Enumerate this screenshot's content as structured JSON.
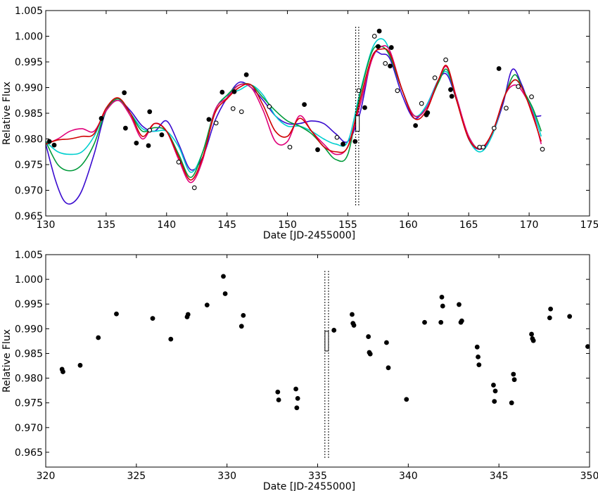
{
  "chart_data": [
    {
      "type": "line",
      "xlabel": "Date [JD-2455000]",
      "ylabel": "Relative Flux",
      "xlim": [
        130,
        175
      ],
      "ylim": [
        0.965,
        1.005
      ],
      "xticks": [
        130,
        135,
        140,
        145,
        150,
        155,
        160,
        165,
        170,
        175
      ],
      "xtick_labels": [
        "130",
        "135",
        "140",
        "145",
        "150",
        "155",
        "160",
        "165",
        "170",
        "175"
      ],
      "yticks": [
        0.965,
        0.97,
        0.975,
        0.98,
        0.985,
        0.99,
        0.995,
        1.0,
        1.005
      ],
      "ytick_labels": [
        "0.965",
        "0.970",
        "0.975",
        "0.980",
        "0.985",
        "0.990",
        "0.995",
        "1.000",
        "1.005"
      ],
      "grid": false,
      "vlines": [
        155.65,
        155.9
      ],
      "errorbar_box": {
        "x": 155.8,
        "y_low": 0.9815,
        "y_high": 0.9845
      },
      "filled_points": [
        {
          "x": 130.3,
          "y": 0.9795
        },
        {
          "x": 130.7,
          "y": 0.9788
        },
        {
          "x": 134.6,
          "y": 0.984
        },
        {
          "x": 136.5,
          "y": 0.989
        },
        {
          "x": 136.6,
          "y": 0.9821
        },
        {
          "x": 137.5,
          "y": 0.9792
        },
        {
          "x": 138.5,
          "y": 0.9787
        },
        {
          "x": 138.6,
          "y": 0.9853
        },
        {
          "x": 139.6,
          "y": 0.9808
        },
        {
          "x": 143.5,
          "y": 0.9838
        },
        {
          "x": 144.6,
          "y": 0.9891
        },
        {
          "x": 145.6,
          "y": 0.9892
        },
        {
          "x": 146.6,
          "y": 0.9925
        },
        {
          "x": 151.4,
          "y": 0.9867
        },
        {
          "x": 152.5,
          "y": 0.9779
        },
        {
          "x": 154.6,
          "y": 0.979
        },
        {
          "x": 155.6,
          "y": 0.9795
        },
        {
          "x": 156.4,
          "y": 0.9861
        },
        {
          "x": 157.5,
          "y": 0.998
        },
        {
          "x": 157.6,
          "y": 1.001
        },
        {
          "x": 158.6,
          "y": 0.9978
        },
        {
          "x": 158.5,
          "y": 0.9942
        },
        {
          "x": 160.6,
          "y": 0.9826
        },
        {
          "x": 161.5,
          "y": 0.9847
        },
        {
          "x": 161.6,
          "y": 0.9851
        },
        {
          "x": 163.5,
          "y": 0.9896
        },
        {
          "x": 163.6,
          "y": 0.9883
        },
        {
          "x": 167.5,
          "y": 0.9937
        }
      ],
      "open_points": [
        {
          "x": 138.6,
          "y": 0.9817
        },
        {
          "x": 141.0,
          "y": 0.9755
        },
        {
          "x": 142.3,
          "y": 0.9705
        },
        {
          "x": 144.1,
          "y": 0.9831
        },
        {
          "x": 145.5,
          "y": 0.9859
        },
        {
          "x": 146.2,
          "y": 0.9853
        },
        {
          "x": 148.5,
          "y": 0.9863
        },
        {
          "x": 150.2,
          "y": 0.9784
        },
        {
          "x": 154.1,
          "y": 0.9803
        },
        {
          "x": 155.9,
          "y": 0.9894
        },
        {
          "x": 157.2,
          "y": 1.0
        },
        {
          "x": 158.1,
          "y": 0.9947
        },
        {
          "x": 159.1,
          "y": 0.9894
        },
        {
          "x": 161.1,
          "y": 0.9869
        },
        {
          "x": 162.2,
          "y": 0.9919
        },
        {
          "x": 163.1,
          "y": 0.9954
        },
        {
          "x": 165.9,
          "y": 0.9784
        },
        {
          "x": 166.2,
          "y": 0.9784
        },
        {
          "x": 167.1,
          "y": 0.9821
        },
        {
          "x": 168.1,
          "y": 0.986
        },
        {
          "x": 169.1,
          "y": 0.9902
        },
        {
          "x": 170.2,
          "y": 0.9882
        },
        {
          "x": 171.1,
          "y": 0.978
        }
      ],
      "series": [
        {
          "color": "#3a0ccf",
          "x": [
            130,
            130.8,
            131.5,
            132.2,
            133.0,
            134.0,
            135.0,
            136.0,
            137.0,
            138.0,
            139.0,
            140.0,
            141.0,
            142.0,
            143.0,
            144.0,
            145.0,
            146.0,
            147.0,
            148.0,
            149.0,
            150.0,
            151.0,
            152.0,
            153.0,
            154.0,
            155.0,
            156.0,
            157.0,
            157.8,
            158.5,
            159.5,
            160.5,
            161.5,
            162.5,
            163.2,
            164.0,
            165.0,
            165.9,
            166.8,
            167.8,
            168.6,
            169.4,
            170.3,
            171.0
          ],
          "y": [
            0.979,
            0.972,
            0.968,
            0.9675,
            0.97,
            0.977,
            0.9855,
            0.9875,
            0.9855,
            0.9825,
            0.9815,
            0.9835,
            0.979,
            0.974,
            0.9765,
            0.9835,
            0.988,
            0.991,
            0.99,
            0.9875,
            0.9845,
            0.983,
            0.983,
            0.9835,
            0.983,
            0.981,
            0.9795,
            0.985,
            0.996,
            0.9965,
            0.9955,
            0.9885,
            0.984,
            0.9865,
            0.9915,
            0.9925,
            0.9875,
            0.98,
            0.978,
            0.98,
            0.9865,
            0.9935,
            0.9905,
            0.985,
            0.9845
          ]
        },
        {
          "color": "#00cfcf",
          "x": [
            130,
            131.0,
            132.0,
            133.0,
            134.0,
            135.0,
            136.0,
            137.0,
            138.0,
            139.0,
            140.0,
            141.0,
            142.0,
            143.0,
            144.0,
            145.0,
            146.0,
            147.0,
            148.0,
            149.0,
            150.0,
            151.0,
            152.0,
            153.0,
            154.0,
            155.0,
            156.0,
            157.0,
            157.8,
            158.5,
            159.5,
            160.5,
            161.5,
            162.5,
            163.2,
            164.0,
            165.0,
            166.0,
            167.0,
            168.0,
            168.8,
            169.5,
            170.3,
            171.0
          ],
          "y": [
            0.9795,
            0.9775,
            0.977,
            0.9775,
            0.9805,
            0.9855,
            0.9875,
            0.985,
            0.982,
            0.9815,
            0.9815,
            0.9785,
            0.9735,
            0.9775,
            0.9855,
            0.9885,
            0.9895,
            0.9905,
            0.9885,
            0.9845,
            0.9825,
            0.9825,
            0.9815,
            0.98,
            0.979,
            0.9795,
            0.989,
            0.9975,
            0.9995,
            0.997,
            0.9895,
            0.9845,
            0.9865,
            0.9915,
            0.993,
            0.988,
            0.98,
            0.9775,
            0.981,
            0.9885,
            0.9915,
            0.9895,
            0.9855,
            0.9805
          ]
        },
        {
          "color": "#009a3a",
          "x": [
            130,
            131.0,
            132.0,
            133.0,
            134.0,
            135.0,
            136.0,
            137.0,
            138.0,
            139.0,
            140.0,
            141.0,
            142.0,
            143.0,
            144.0,
            145.0,
            146.0,
            147.0,
            148.0,
            149.0,
            150.0,
            151.0,
            152.0,
            153.0,
            154.0,
            155.0,
            156.0,
            157.0,
            157.8,
            158.5,
            159.5,
            160.5,
            161.5,
            162.5,
            163.2,
            164.0,
            165.0,
            166.0,
            167.0,
            168.0,
            168.8,
            169.5,
            170.3,
            171.0
          ],
          "y": [
            0.9795,
            0.975,
            0.9738,
            0.975,
            0.979,
            0.9855,
            0.9878,
            0.985,
            0.9815,
            0.9822,
            0.9815,
            0.977,
            0.9725,
            0.9775,
            0.9855,
            0.9885,
            0.9905,
            0.9905,
            0.988,
            0.9855,
            0.9835,
            0.9825,
            0.981,
            0.9785,
            0.976,
            0.977,
            0.9885,
            0.997,
            0.998,
            0.996,
            0.9895,
            0.9845,
            0.986,
            0.991,
            0.9935,
            0.9875,
            0.9805,
            0.978,
            0.9815,
            0.9885,
            0.9925,
            0.9895,
            0.986,
            0.9815
          ]
        },
        {
          "color": "#e0007a",
          "x": [
            130,
            131.0,
            132.0,
            133.0,
            134.0,
            135.0,
            136.0,
            137.0,
            138.0,
            139.0,
            140.0,
            141.0,
            142.0,
            143.0,
            144.0,
            145.0,
            146.0,
            147.0,
            148.0,
            149.0,
            150.0,
            151.0,
            152.0,
            153.0,
            154.0,
            155.0,
            156.0,
            157.0,
            157.8,
            158.5,
            159.5,
            160.5,
            161.5,
            162.5,
            163.2,
            164.0,
            165.0,
            166.0,
            167.0,
            168.0,
            168.8,
            169.5,
            170.3,
            171.0
          ],
          "y": [
            0.979,
            0.98,
            0.9815,
            0.982,
            0.9815,
            0.9855,
            0.9875,
            0.9845,
            0.98,
            0.983,
            0.9815,
            0.976,
            0.9715,
            0.976,
            0.9855,
            0.988,
            0.9905,
            0.99,
            0.9855,
            0.9795,
            0.9795,
            0.9845,
            0.9815,
            0.979,
            0.977,
            0.9785,
            0.9865,
            0.9955,
            0.998,
            0.997,
            0.9895,
            0.9845,
            0.986,
            0.9915,
            0.994,
            0.988,
            0.9805,
            0.978,
            0.9815,
            0.9885,
            0.9905,
            0.989,
            0.985,
            0.979
          ]
        },
        {
          "color": "#cf0000",
          "x": [
            130,
            131.0,
            132.0,
            133.0,
            134.0,
            135.0,
            136.0,
            137.0,
            138.0,
            139.0,
            140.0,
            141.0,
            142.0,
            143.0,
            144.0,
            145.0,
            146.0,
            147.0,
            148.0,
            149.0,
            150.0,
            151.0,
            152.0,
            153.0,
            154.0,
            155.0,
            156.0,
            157.0,
            157.8,
            158.5,
            159.5,
            160.5,
            161.5,
            162.5,
            163.2,
            164.0,
            165.0,
            166.0,
            167.0,
            168.0,
            168.8,
            169.5,
            170.3,
            171.0
          ],
          "y": [
            0.979,
            0.9798,
            0.98,
            0.9805,
            0.981,
            0.986,
            0.988,
            0.985,
            0.9805,
            0.983,
            0.9815,
            0.9765,
            0.972,
            0.9765,
            0.985,
            0.9878,
            0.99,
            0.9905,
            0.9865,
            0.9815,
            0.9805,
            0.984,
            0.9815,
            0.9785,
            0.9775,
            0.9785,
            0.9875,
            0.996,
            0.9975,
            0.9965,
            0.9895,
            0.984,
            0.9855,
            0.9915,
            0.9942,
            0.9875,
            0.98,
            0.9782,
            0.9815,
            0.9885,
            0.9915,
            0.9895,
            0.9845,
            0.9795
          ]
        }
      ]
    },
    {
      "type": "scatter",
      "xlabel": "Date [JD-2455000]",
      "ylabel": "Relative Flux",
      "xlim": [
        320,
        350
      ],
      "ylim": [
        0.962,
        1.005
      ],
      "xticks": [
        320,
        325,
        330,
        335,
        340,
        345,
        350
      ],
      "xtick_labels": [
        "320",
        "325",
        "330",
        "335",
        "340",
        "345",
        "350"
      ],
      "yticks": [
        0.965,
        0.97,
        0.975,
        0.98,
        0.985,
        0.99,
        0.995,
        1.0,
        1.005
      ],
      "ytick_labels": [
        "0.965",
        "0.970",
        "0.975",
        "0.980",
        "0.985",
        "0.990",
        "0.995",
        "1.000",
        "1.005"
      ],
      "grid": false,
      "vlines": [
        335.4,
        335.6
      ],
      "errorbar_box": {
        "x": 335.5,
        "y_low": 0.9855,
        "y_high": 0.9895
      },
      "filled_points": [
        {
          "x": 320.9,
          "y": 0.9818
        },
        {
          "x": 320.95,
          "y": 0.9813
        },
        {
          "x": 321.9,
          "y": 0.9826
        },
        {
          "x": 322.9,
          "y": 0.9882
        },
        {
          "x": 323.9,
          "y": 0.993
        },
        {
          "x": 325.9,
          "y": 0.9921
        },
        {
          "x": 326.9,
          "y": 0.9879
        },
        {
          "x": 327.8,
          "y": 0.9924
        },
        {
          "x": 327.85,
          "y": 0.9929
        },
        {
          "x": 328.9,
          "y": 0.9948
        },
        {
          "x": 329.8,
          "y": 1.0006
        },
        {
          "x": 329.9,
          "y": 0.9971
        },
        {
          "x": 330.8,
          "y": 0.9905
        },
        {
          "x": 330.9,
          "y": 0.9927
        },
        {
          "x": 332.8,
          "y": 0.9772
        },
        {
          "x": 332.85,
          "y": 0.9756
        },
        {
          "x": 333.8,
          "y": 0.9778
        },
        {
          "x": 333.85,
          "y": 0.974
        },
        {
          "x": 333.9,
          "y": 0.9759
        },
        {
          "x": 335.9,
          "y": 0.9897
        },
        {
          "x": 336.9,
          "y": 0.9929
        },
        {
          "x": 336.95,
          "y": 0.9911
        },
        {
          "x": 337.0,
          "y": 0.9907
        },
        {
          "x": 337.8,
          "y": 0.9884
        },
        {
          "x": 337.85,
          "y": 0.9852
        },
        {
          "x": 337.9,
          "y": 0.9849
        },
        {
          "x": 338.8,
          "y": 0.9872
        },
        {
          "x": 338.9,
          "y": 0.9821
        },
        {
          "x": 339.9,
          "y": 0.9757
        },
        {
          "x": 340.9,
          "y": 0.9913
        },
        {
          "x": 341.8,
          "y": 0.9913
        },
        {
          "x": 341.85,
          "y": 0.9964
        },
        {
          "x": 341.9,
          "y": 0.9946
        },
        {
          "x": 342.8,
          "y": 0.9949
        },
        {
          "x": 342.9,
          "y": 0.9913
        },
        {
          "x": 342.95,
          "y": 0.9916
        },
        {
          "x": 343.8,
          "y": 0.9863
        },
        {
          "x": 343.85,
          "y": 0.9843
        },
        {
          "x": 343.9,
          "y": 0.9827
        },
        {
          "x": 344.7,
          "y": 0.9786
        },
        {
          "x": 344.8,
          "y": 0.9774
        },
        {
          "x": 344.75,
          "y": 0.9753
        },
        {
          "x": 345.7,
          "y": 0.975
        },
        {
          "x": 345.8,
          "y": 0.9808
        },
        {
          "x": 345.85,
          "y": 0.9797
        },
        {
          "x": 346.8,
          "y": 0.9889
        },
        {
          "x": 346.85,
          "y": 0.988
        },
        {
          "x": 346.9,
          "y": 0.9876
        },
        {
          "x": 347.8,
          "y": 0.9922
        },
        {
          "x": 347.85,
          "y": 0.994
        },
        {
          "x": 348.9,
          "y": 0.9925
        },
        {
          "x": 349.9,
          "y": 0.9864
        }
      ],
      "open_points": [],
      "series": []
    }
  ]
}
